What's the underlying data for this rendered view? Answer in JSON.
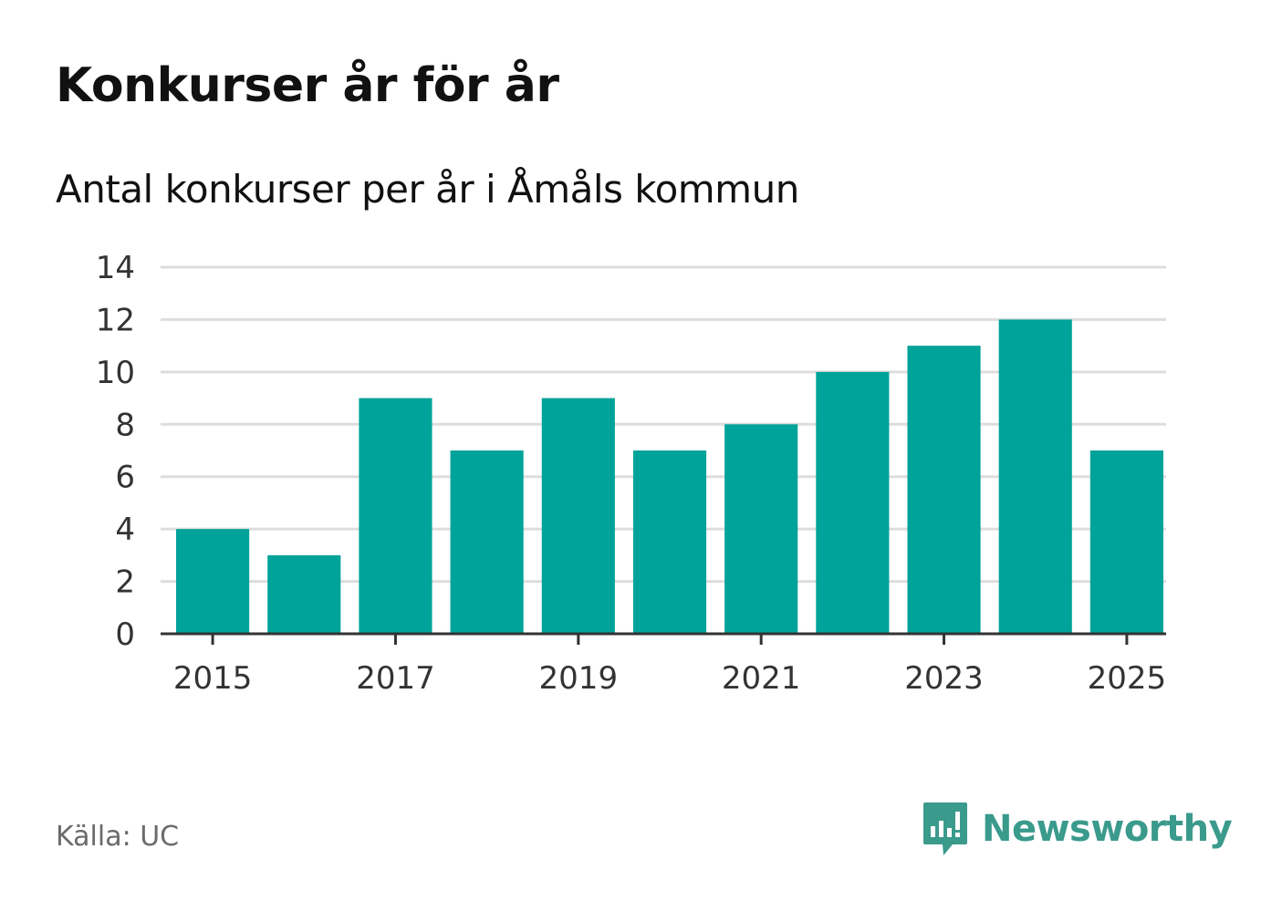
{
  "header": {
    "title": "Konkurser år för år",
    "subtitle": "Antal konkurser per år i Åmåls kommun"
  },
  "footer": {
    "source": "Källa: UC",
    "brand_name": "Newsworthy",
    "brand_color": "#3a9a8c"
  },
  "colors": {
    "bar": "#00a399",
    "grid": "#dddddd",
    "axis": "#333333",
    "tick_text": "#333333"
  },
  "chart_data": {
    "type": "bar",
    "title": "Antal konkurser per år i Åmåls kommun",
    "xlabel": "",
    "ylabel": "",
    "categories": [
      "2015",
      "2016",
      "2017",
      "2018",
      "2019",
      "2020",
      "2021",
      "2022",
      "2023",
      "2024",
      "2025"
    ],
    "values": [
      4,
      3,
      9,
      7,
      9,
      7,
      8,
      10,
      11,
      12,
      7
    ],
    "x_tick_labels": [
      "2015",
      "2017",
      "2019",
      "2021",
      "2023",
      "2025"
    ],
    "y_tick_labels": [
      "0",
      "2",
      "4",
      "6",
      "8",
      "10",
      "12",
      "14"
    ],
    "ylim": [
      0,
      14
    ],
    "grid": true,
    "legend": "none"
  }
}
